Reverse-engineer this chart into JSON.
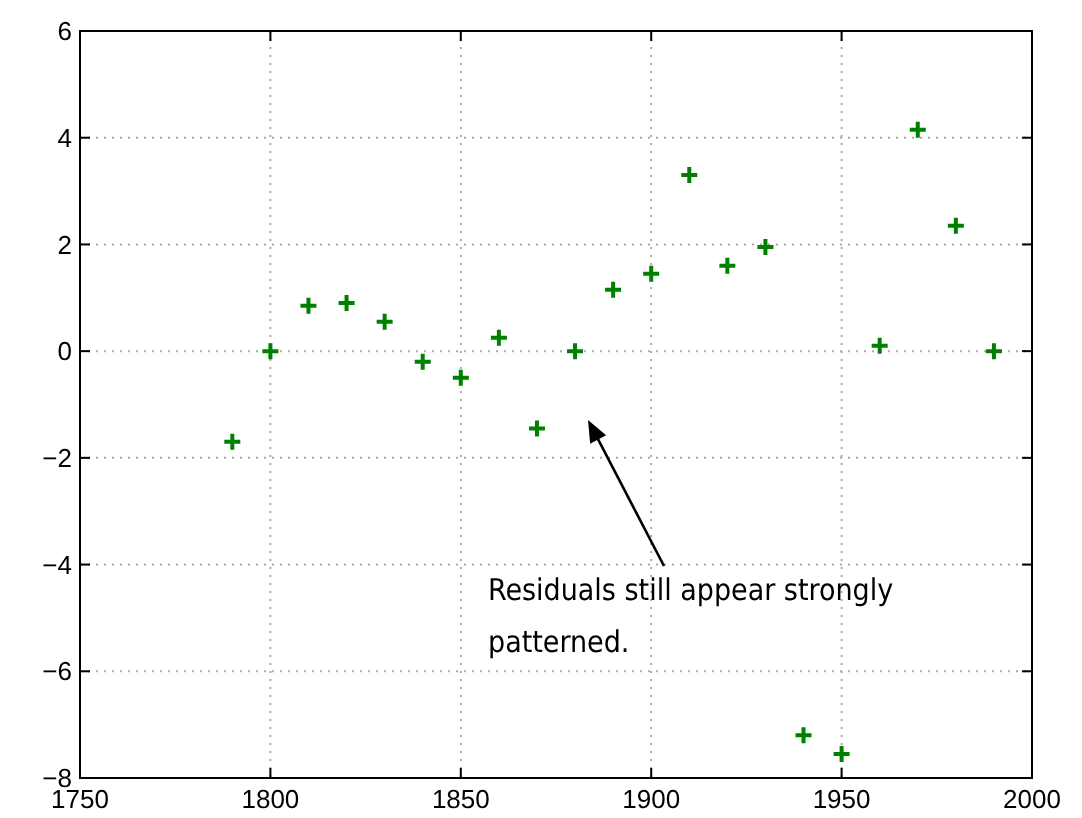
{
  "chart_data": {
    "type": "scatter",
    "marker": "cross",
    "grid": true,
    "x": [
      1790,
      1800,
      1810,
      1820,
      1830,
      1840,
      1850,
      1860,
      1870,
      1880,
      1890,
      1900,
      1910,
      1920,
      1930,
      1940,
      1950,
      1960,
      1970,
      1980,
      1990
    ],
    "series": [
      {
        "color": "#008000",
        "values": [
          -1.7,
          0,
          0.85,
          0.9,
          0.55,
          -0.2,
          -0.5,
          0.25,
          -1.45,
          0,
          1.15,
          1.45,
          3.3,
          1.6,
          1.95,
          -7.2,
          -7.55,
          0.1,
          4.15,
          2.35,
          0
        ]
      }
    ],
    "xlim": [
      1750,
      2000
    ],
    "xticks": [
      1750,
      1800,
      1850,
      1900,
      1950,
      2000
    ],
    "ylim": [
      -8,
      6
    ],
    "yticks": [
      -8,
      -6,
      -4,
      -2,
      0,
      2,
      4,
      6
    ],
    "annotations": [
      "Residuals still appear strongly patterned."
    ]
  }
}
